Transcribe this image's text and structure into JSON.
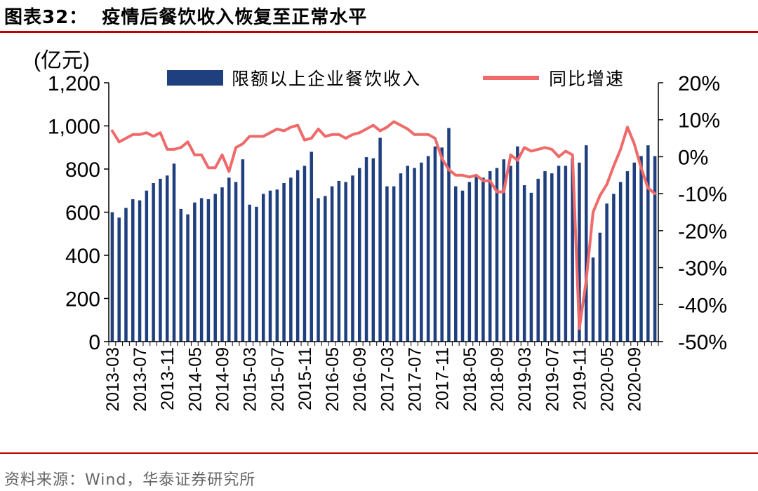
{
  "header": {
    "figure_label": "图表32：",
    "title": "疫情后餐饮收入恢复至正常水平"
  },
  "footer": {
    "source": "资料来源：Wind，华泰证券研究所"
  },
  "colors": {
    "bar": "#1f3f7f",
    "line": "#f06a6a",
    "accent": "#c00000"
  },
  "chart_data": {
    "type": "bar",
    "title": "",
    "y_left_unit": "(亿元)",
    "y_left_range": [
      0,
      1200
    ],
    "y_left_ticks": [
      "0",
      "200",
      "400",
      "600",
      "800",
      "1,000",
      "1,200"
    ],
    "y_right_range": [
      -50,
      20
    ],
    "y_right_ticks": [
      "-50%",
      "-40%",
      "-30%",
      "-20%",
      "-10%",
      "0%",
      "10%",
      "20%"
    ],
    "x_tick_labels": [
      "2013-03",
      "2013-07",
      "2013-11",
      "2014-05",
      "2014-09",
      "2015-03",
      "2015-07",
      "2015-11",
      "2016-05",
      "2016-09",
      "2017-03",
      "2017-07",
      "2017-11",
      "2018-05",
      "2018-09",
      "2019-03",
      "2019-07",
      "2019-11",
      "2020-05",
      "2020-09"
    ],
    "legend_position": "top",
    "series": [
      {
        "name": "限额以上企业餐饮收入",
        "type": "bar",
        "axis": "left",
        "categories": [
          "2013-03",
          "2013-04",
          "2013-05",
          "2013-06",
          "2013-07",
          "2013-08",
          "2013-09",
          "2013-10",
          "2013-11",
          "2013-12",
          "2014-03",
          "2014-04",
          "2014-05",
          "2014-06",
          "2014-07",
          "2014-08",
          "2014-09",
          "2014-10",
          "2014-11",
          "2014-12",
          "2015-03",
          "2015-04",
          "2015-05",
          "2015-06",
          "2015-07",
          "2015-08",
          "2015-09",
          "2015-10",
          "2015-11",
          "2015-12",
          "2016-03",
          "2016-04",
          "2016-05",
          "2016-06",
          "2016-07",
          "2016-08",
          "2016-09",
          "2016-10",
          "2016-11",
          "2016-12",
          "2017-03",
          "2017-04",
          "2017-05",
          "2017-06",
          "2017-07",
          "2017-08",
          "2017-09",
          "2017-10",
          "2017-11",
          "2017-12",
          "2018-03",
          "2018-04",
          "2018-05",
          "2018-06",
          "2018-07",
          "2018-08",
          "2018-09",
          "2018-10",
          "2018-11",
          "2018-12",
          "2019-03",
          "2019-04",
          "2019-05",
          "2019-06",
          "2019-07",
          "2019-08",
          "2019-09",
          "2019-10",
          "2019-11",
          "2019-12",
          "2020-03",
          "2020-04",
          "2020-05",
          "2020-06",
          "2020-07",
          "2020-08",
          "2020-09",
          "2020-10",
          "2020-11",
          "2020-12"
        ],
        "values": [
          600,
          575,
          620,
          660,
          655,
          700,
          735,
          755,
          770,
          825,
          615,
          590,
          645,
          665,
          660,
          685,
          715,
          760,
          740,
          845,
          635,
          625,
          685,
          700,
          705,
          735,
          760,
          795,
          815,
          880,
          665,
          675,
          720,
          745,
          740,
          770,
          805,
          855,
          850,
          945,
          720,
          720,
          780,
          815,
          805,
          830,
          860,
          905,
          900,
          990,
          720,
          700,
          740,
          770,
          760,
          790,
          805,
          845,
          815,
          905,
          725,
          690,
          755,
          790,
          780,
          815,
          815,
          850,
          830,
          910,
          390,
          505,
          640,
          685,
          740,
          790,
          830,
          860,
          910,
          860
        ]
      },
      {
        "name": "同比增速",
        "type": "line",
        "axis": "right",
        "x": [
          "2013-03",
          "2013-04",
          "2013-05",
          "2013-06",
          "2013-07",
          "2013-08",
          "2013-09",
          "2013-10",
          "2013-11",
          "2013-12",
          "2014-03",
          "2014-04",
          "2014-05",
          "2014-06",
          "2014-07",
          "2014-08",
          "2014-09",
          "2014-10",
          "2014-11",
          "2014-12",
          "2015-03",
          "2015-04",
          "2015-05",
          "2015-06",
          "2015-07",
          "2015-08",
          "2015-09",
          "2015-10",
          "2015-11",
          "2015-12",
          "2016-03",
          "2016-04",
          "2016-05",
          "2016-06",
          "2016-07",
          "2016-08",
          "2016-09",
          "2016-10",
          "2016-11",
          "2016-12",
          "2017-03",
          "2017-04",
          "2017-05",
          "2017-06",
          "2017-07",
          "2017-08",
          "2017-09",
          "2017-10",
          "2017-11",
          "2017-12",
          "2018-03",
          "2018-04",
          "2018-05",
          "2018-06",
          "2018-07",
          "2018-08",
          "2018-09",
          "2018-10",
          "2018-11",
          "2018-12",
          "2019-03",
          "2019-04",
          "2019-05",
          "2019-06",
          "2019-07",
          "2019-08",
          "2019-09",
          "2019-10",
          "2019-11",
          "2019-12",
          "2020-03",
          "2020-04",
          "2020-05",
          "2020-06",
          "2020-07",
          "2020-08",
          "2020-09",
          "2020-10",
          "2020-11",
          "2020-12"
        ],
        "values": [
          7.0,
          4.0,
          5.0,
          6.0,
          6.0,
          6.5,
          5.5,
          6.5,
          2.0,
          2.0,
          2.5,
          4.0,
          0.5,
          0.5,
          -3.0,
          -3.0,
          0.5,
          -4.0,
          2.5,
          3.5,
          5.5,
          5.5,
          5.5,
          6.5,
          7.5,
          7.0,
          8.0,
          8.5,
          4.5,
          5.0,
          7.5,
          5.5,
          6.0,
          6.0,
          5.0,
          6.0,
          6.5,
          7.5,
          8.5,
          7.0,
          8.0,
          9.5,
          8.5,
          7.5,
          6.0,
          6.0,
          6.0,
          5.0,
          -0.5,
          -3.5,
          -5.0,
          -5.0,
          -5.5,
          -5.0,
          -6.5,
          -6.5,
          -9.5,
          -9.5,
          0.5,
          -1.0,
          2.5,
          1.5,
          2.0,
          2.5,
          2.0,
          0.0,
          1.5,
          0.5,
          -46.5,
          -33.5,
          -15.0,
          -10.5,
          -7.5,
          -2.5,
          2.0,
          8.0,
          3.5,
          -3.0,
          -8.5,
          -10.0
        ]
      }
    ]
  }
}
